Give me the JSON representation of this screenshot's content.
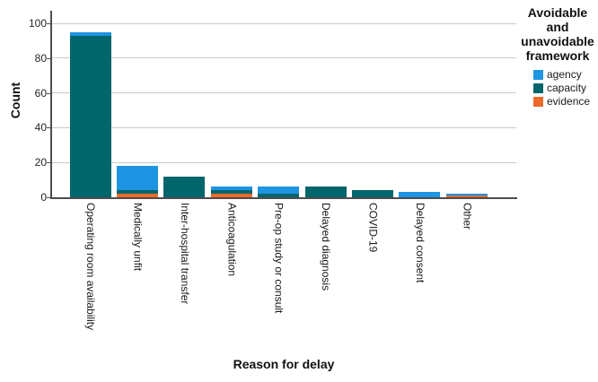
{
  "chart_data": {
    "type": "bar",
    "stacked": true,
    "title": "",
    "xlabel": "Reason for delay",
    "ylabel": "Count",
    "ylim": [
      0,
      107
    ],
    "yticks": [
      0,
      20,
      40,
      60,
      80,
      100
    ],
    "grid": "horizontal-light-gray",
    "categories": [
      "Operating room availability",
      "Medically unfit",
      "Inter-hospital transfer",
      "Anticoagulation",
      "Pre-op study or consult",
      "Delayed diagnosis",
      "COVID-19",
      "Delayed consent",
      "Other"
    ],
    "series": [
      {
        "name": "agency",
        "color": "#1e94e2",
        "values": [
          2,
          14,
          0,
          2,
          4,
          0,
          0,
          3,
          1
        ]
      },
      {
        "name": "capacity",
        "color": "#00666b",
        "values": [
          93,
          2,
          12,
          2,
          2,
          6,
          4,
          0,
          0
        ]
      },
      {
        "name": "evidence",
        "color": "#eb6a2a",
        "values": [
          0,
          2,
          0,
          2,
          0,
          0,
          0,
          0,
          1
        ]
      }
    ],
    "stack_order_bottom_to_top": [
      "evidence",
      "capacity",
      "agency"
    ],
    "legend": {
      "title": "Avoidable and unavoidable framework",
      "position": "top-right",
      "entries": [
        {
          "label": "agency",
          "color": "#1e94e2"
        },
        {
          "label": "capacity",
          "color": "#00666b"
        },
        {
          "label": "evidence",
          "color": "#eb6a2a"
        }
      ]
    },
    "colors": {
      "axis_line": "#4d4d4d",
      "gridline": "#c9c9c9",
      "tick_text": "#262626",
      "title_text": "#111111",
      "background": "#ffffff"
    }
  }
}
